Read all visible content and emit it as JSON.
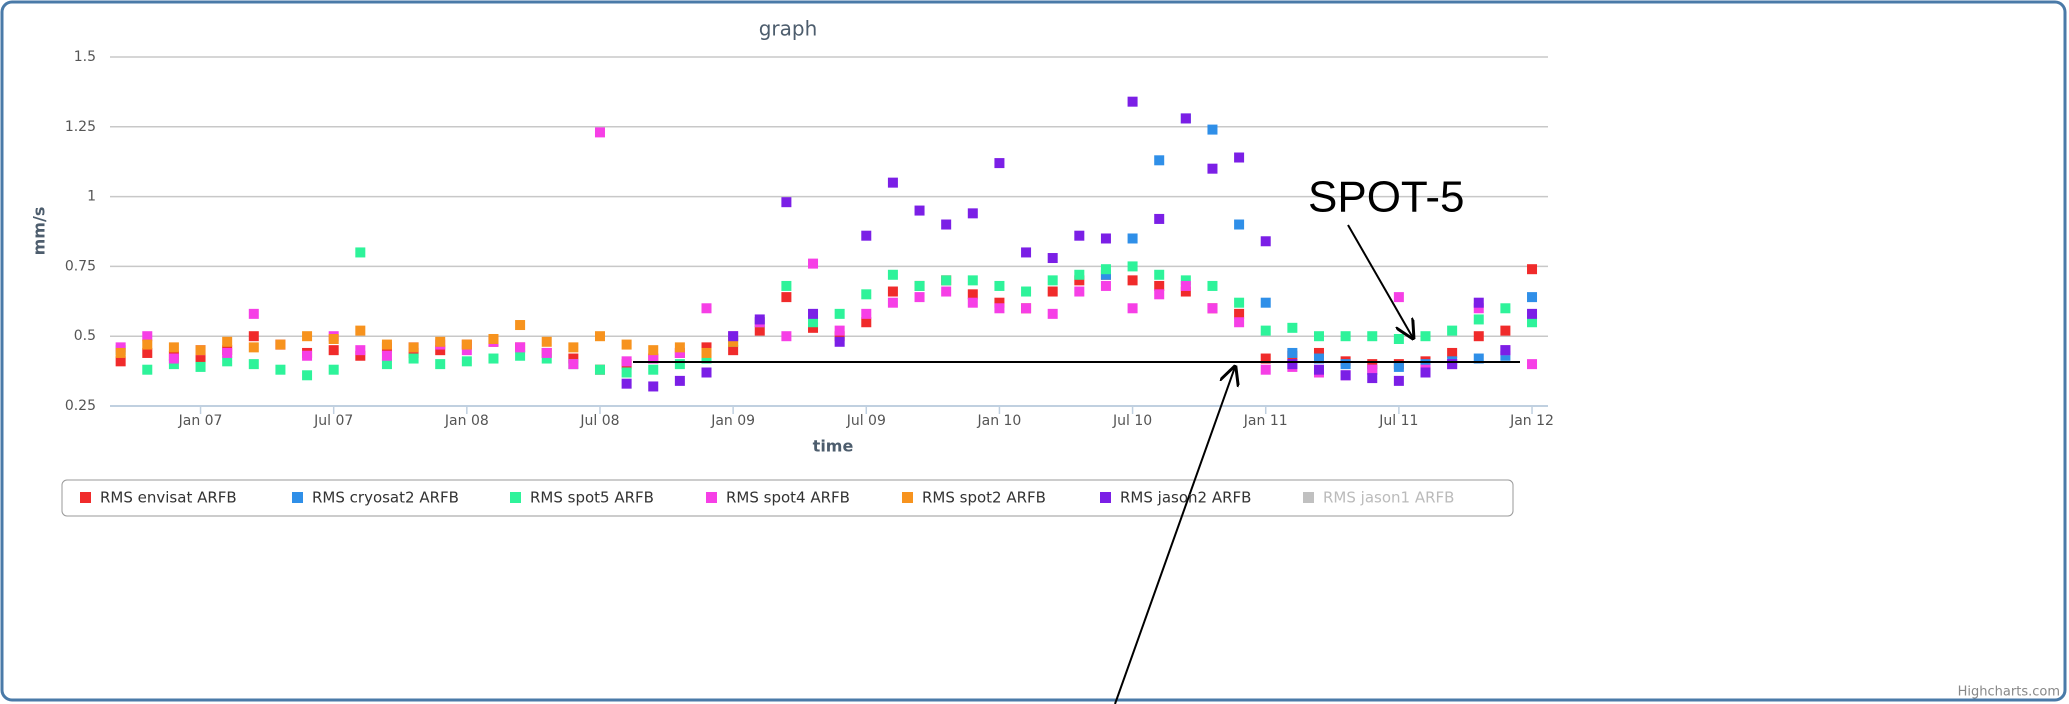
{
  "chart_data": {
    "type": "scatter",
    "title": "graph",
    "y_label": "mm/s",
    "x_label": "time",
    "xlim": [
      2006.66,
      2012.06
    ],
    "ylim": [
      0.25,
      1.5
    ],
    "xticks": [
      {
        "value": 2007,
        "label": "Jan 07"
      },
      {
        "value": 2007.5,
        "label": "Jul 07"
      },
      {
        "value": 2008,
        "label": "Jan 08"
      },
      {
        "value": 2008.5,
        "label": "Jul 08"
      },
      {
        "value": 2009,
        "label": "Jan 09"
      },
      {
        "value": 2009.5,
        "label": "Jul 09"
      },
      {
        "value": 2010,
        "label": "Jan 10"
      },
      {
        "value": 2010.5,
        "label": "Jul 10"
      },
      {
        "value": 2011,
        "label": "Jan 11"
      },
      {
        "value": 2011.5,
        "label": "Jul 11"
      },
      {
        "value": 2012,
        "label": "Jan 12"
      }
    ],
    "yticks": [
      0.25,
      0.5,
      0.75,
      1,
      1.25,
      1.5
    ],
    "grid": true,
    "x": [
      2006.7,
      2006.8,
      2006.9,
      2007.0,
      2007.1,
      2007.2,
      2007.3,
      2007.4,
      2007.5,
      2007.6,
      2007.7,
      2007.8,
      2007.9,
      2008.0,
      2008.1,
      2008.2,
      2008.3,
      2008.4,
      2008.5,
      2008.6,
      2008.7,
      2008.8,
      2008.9,
      2009.0,
      2009.1,
      2009.2,
      2009.3,
      2009.4,
      2009.5,
      2009.6,
      2009.7,
      2009.8,
      2009.9,
      2010.0,
      2010.1,
      2010.2,
      2010.3,
      2010.4,
      2010.5,
      2010.6,
      2010.7,
      2010.8,
      2010.9,
      2011.0,
      2011.1,
      2011.2,
      2011.3,
      2011.4,
      2011.5,
      2011.6,
      2011.7,
      2011.8,
      2011.9,
      2012.0
    ],
    "series": [
      {
        "name": "RMS envisat ARFB",
        "color": "#f02b2b",
        "values": [
          0.41,
          0.44,
          0.43,
          0.42,
          0.45,
          0.5,
          0.47,
          0.44,
          0.45,
          0.43,
          0.46,
          0.44,
          0.45,
          0.47,
          0.48,
          0.46,
          0.44,
          0.42,
          0.38,
          0.4,
          0.42,
          0.44,
          0.46,
          0.45,
          0.52,
          0.64,
          0.53,
          0.5,
          0.55,
          0.66,
          0.68,
          0.7,
          0.65,
          0.62,
          0.6,
          0.66,
          0.7,
          0.72,
          0.7,
          0.68,
          0.66,
          0.6,
          0.58,
          0.42,
          0.43,
          0.44,
          0.41,
          0.4,
          0.4,
          0.41,
          0.44,
          0.5,
          0.52,
          0.74
        ]
      },
      {
        "name": "RMS cryosat2 ARFB",
        "color": "#2f8fe8",
        "values": [
          null,
          null,
          null,
          null,
          null,
          null,
          null,
          null,
          null,
          null,
          null,
          null,
          null,
          null,
          null,
          null,
          null,
          null,
          null,
          null,
          null,
          null,
          null,
          null,
          null,
          null,
          null,
          null,
          null,
          null,
          null,
          null,
          null,
          null,
          null,
          null,
          null,
          0.72,
          0.85,
          1.13,
          1.28,
          1.24,
          0.9,
          0.62,
          0.44,
          0.42,
          0.4,
          0.38,
          0.39,
          0.4,
          0.41,
          0.42,
          0.43,
          0.64
        ]
      },
      {
        "name": "RMS spot5 ARFB",
        "color": "#2ef39a",
        "values": [
          0.45,
          0.38,
          0.4,
          0.39,
          0.41,
          0.4,
          0.38,
          0.36,
          0.38,
          0.8,
          0.4,
          0.42,
          0.4,
          0.41,
          0.42,
          0.43,
          0.42,
          0.4,
          0.38,
          0.37,
          0.38,
          0.4,
          0.42,
          0.48,
          0.55,
          0.68,
          0.55,
          0.58,
          0.65,
          0.72,
          0.68,
          0.7,
          0.7,
          0.68,
          0.66,
          0.7,
          0.72,
          0.74,
          0.75,
          0.72,
          0.7,
          0.68,
          0.62,
          0.52,
          0.53,
          0.5,
          0.5,
          0.5,
          0.49,
          0.5,
          0.52,
          0.56,
          0.6,
          0.55
        ]
      },
      {
        "name": "RMS spot4 ARFB",
        "color": "#f63fe6",
        "values": [
          0.46,
          0.5,
          0.42,
          0.45,
          0.44,
          0.58,
          0.47,
          0.43,
          0.5,
          0.45,
          0.43,
          0.46,
          0.47,
          0.45,
          0.48,
          0.46,
          0.44,
          0.4,
          1.23,
          0.41,
          0.42,
          0.44,
          0.6,
          0.5,
          0.55,
          0.5,
          0.76,
          0.52,
          0.58,
          0.62,
          0.64,
          0.66,
          0.62,
          0.6,
          0.6,
          0.58,
          0.66,
          0.68,
          0.6,
          0.65,
          0.68,
          0.6,
          0.55,
          0.38,
          0.39,
          0.37,
          0.36,
          0.38,
          0.64,
          0.38,
          0.4,
          0.6,
          0.45,
          0.4
        ]
      },
      {
        "name": "RMS spot2 ARFB",
        "color": "#f7931e",
        "values": [
          0.44,
          0.47,
          0.46,
          0.45,
          0.48,
          0.46,
          0.47,
          0.5,
          0.49,
          0.52,
          0.47,
          0.46,
          0.48,
          0.47,
          0.49,
          0.54,
          0.48,
          0.46,
          0.5,
          0.47,
          0.45,
          0.46,
          0.44,
          0.48,
          null,
          null,
          null,
          null,
          null,
          null,
          null,
          null,
          null,
          null,
          null,
          null,
          null,
          null,
          null,
          null,
          null,
          null,
          null,
          null,
          null,
          null,
          null,
          null,
          null,
          null,
          null,
          null,
          null,
          null
        ]
      },
      {
        "name": "RMS jason2 ARFB",
        "color": "#7b1fe6",
        "values": [
          null,
          null,
          null,
          null,
          null,
          null,
          null,
          null,
          null,
          null,
          null,
          null,
          null,
          null,
          null,
          null,
          null,
          null,
          null,
          0.33,
          0.32,
          0.34,
          0.37,
          0.5,
          0.56,
          0.98,
          0.58,
          0.48,
          0.86,
          1.05,
          0.95,
          0.9,
          0.94,
          1.12,
          0.8,
          0.78,
          0.86,
          0.85,
          1.34,
          0.92,
          1.28,
          1.1,
          1.14,
          0.84,
          0.4,
          0.38,
          0.36,
          0.35,
          0.34,
          0.37,
          0.4,
          0.62,
          0.45,
          0.58
        ]
      },
      {
        "name": "RMS jason1 ARFB",
        "color": "#c0c0c0",
        "hidden": true,
        "values": [
          null,
          null,
          null,
          null,
          null,
          null,
          null,
          null,
          null,
          null,
          null,
          null,
          null,
          null,
          null,
          null,
          null,
          null,
          null,
          null,
          null,
          null,
          null,
          null,
          null,
          null,
          null,
          null,
          null,
          null,
          null,
          null,
          null,
          null,
          null,
          null,
          null,
          null,
          null,
          null,
          null,
          null,
          null,
          null,
          null,
          null,
          null,
          null,
          null,
          null,
          null,
          null,
          null,
          null
        ]
      }
    ],
    "annotation": "SPOT-5",
    "credits": "Highcharts.com"
  }
}
